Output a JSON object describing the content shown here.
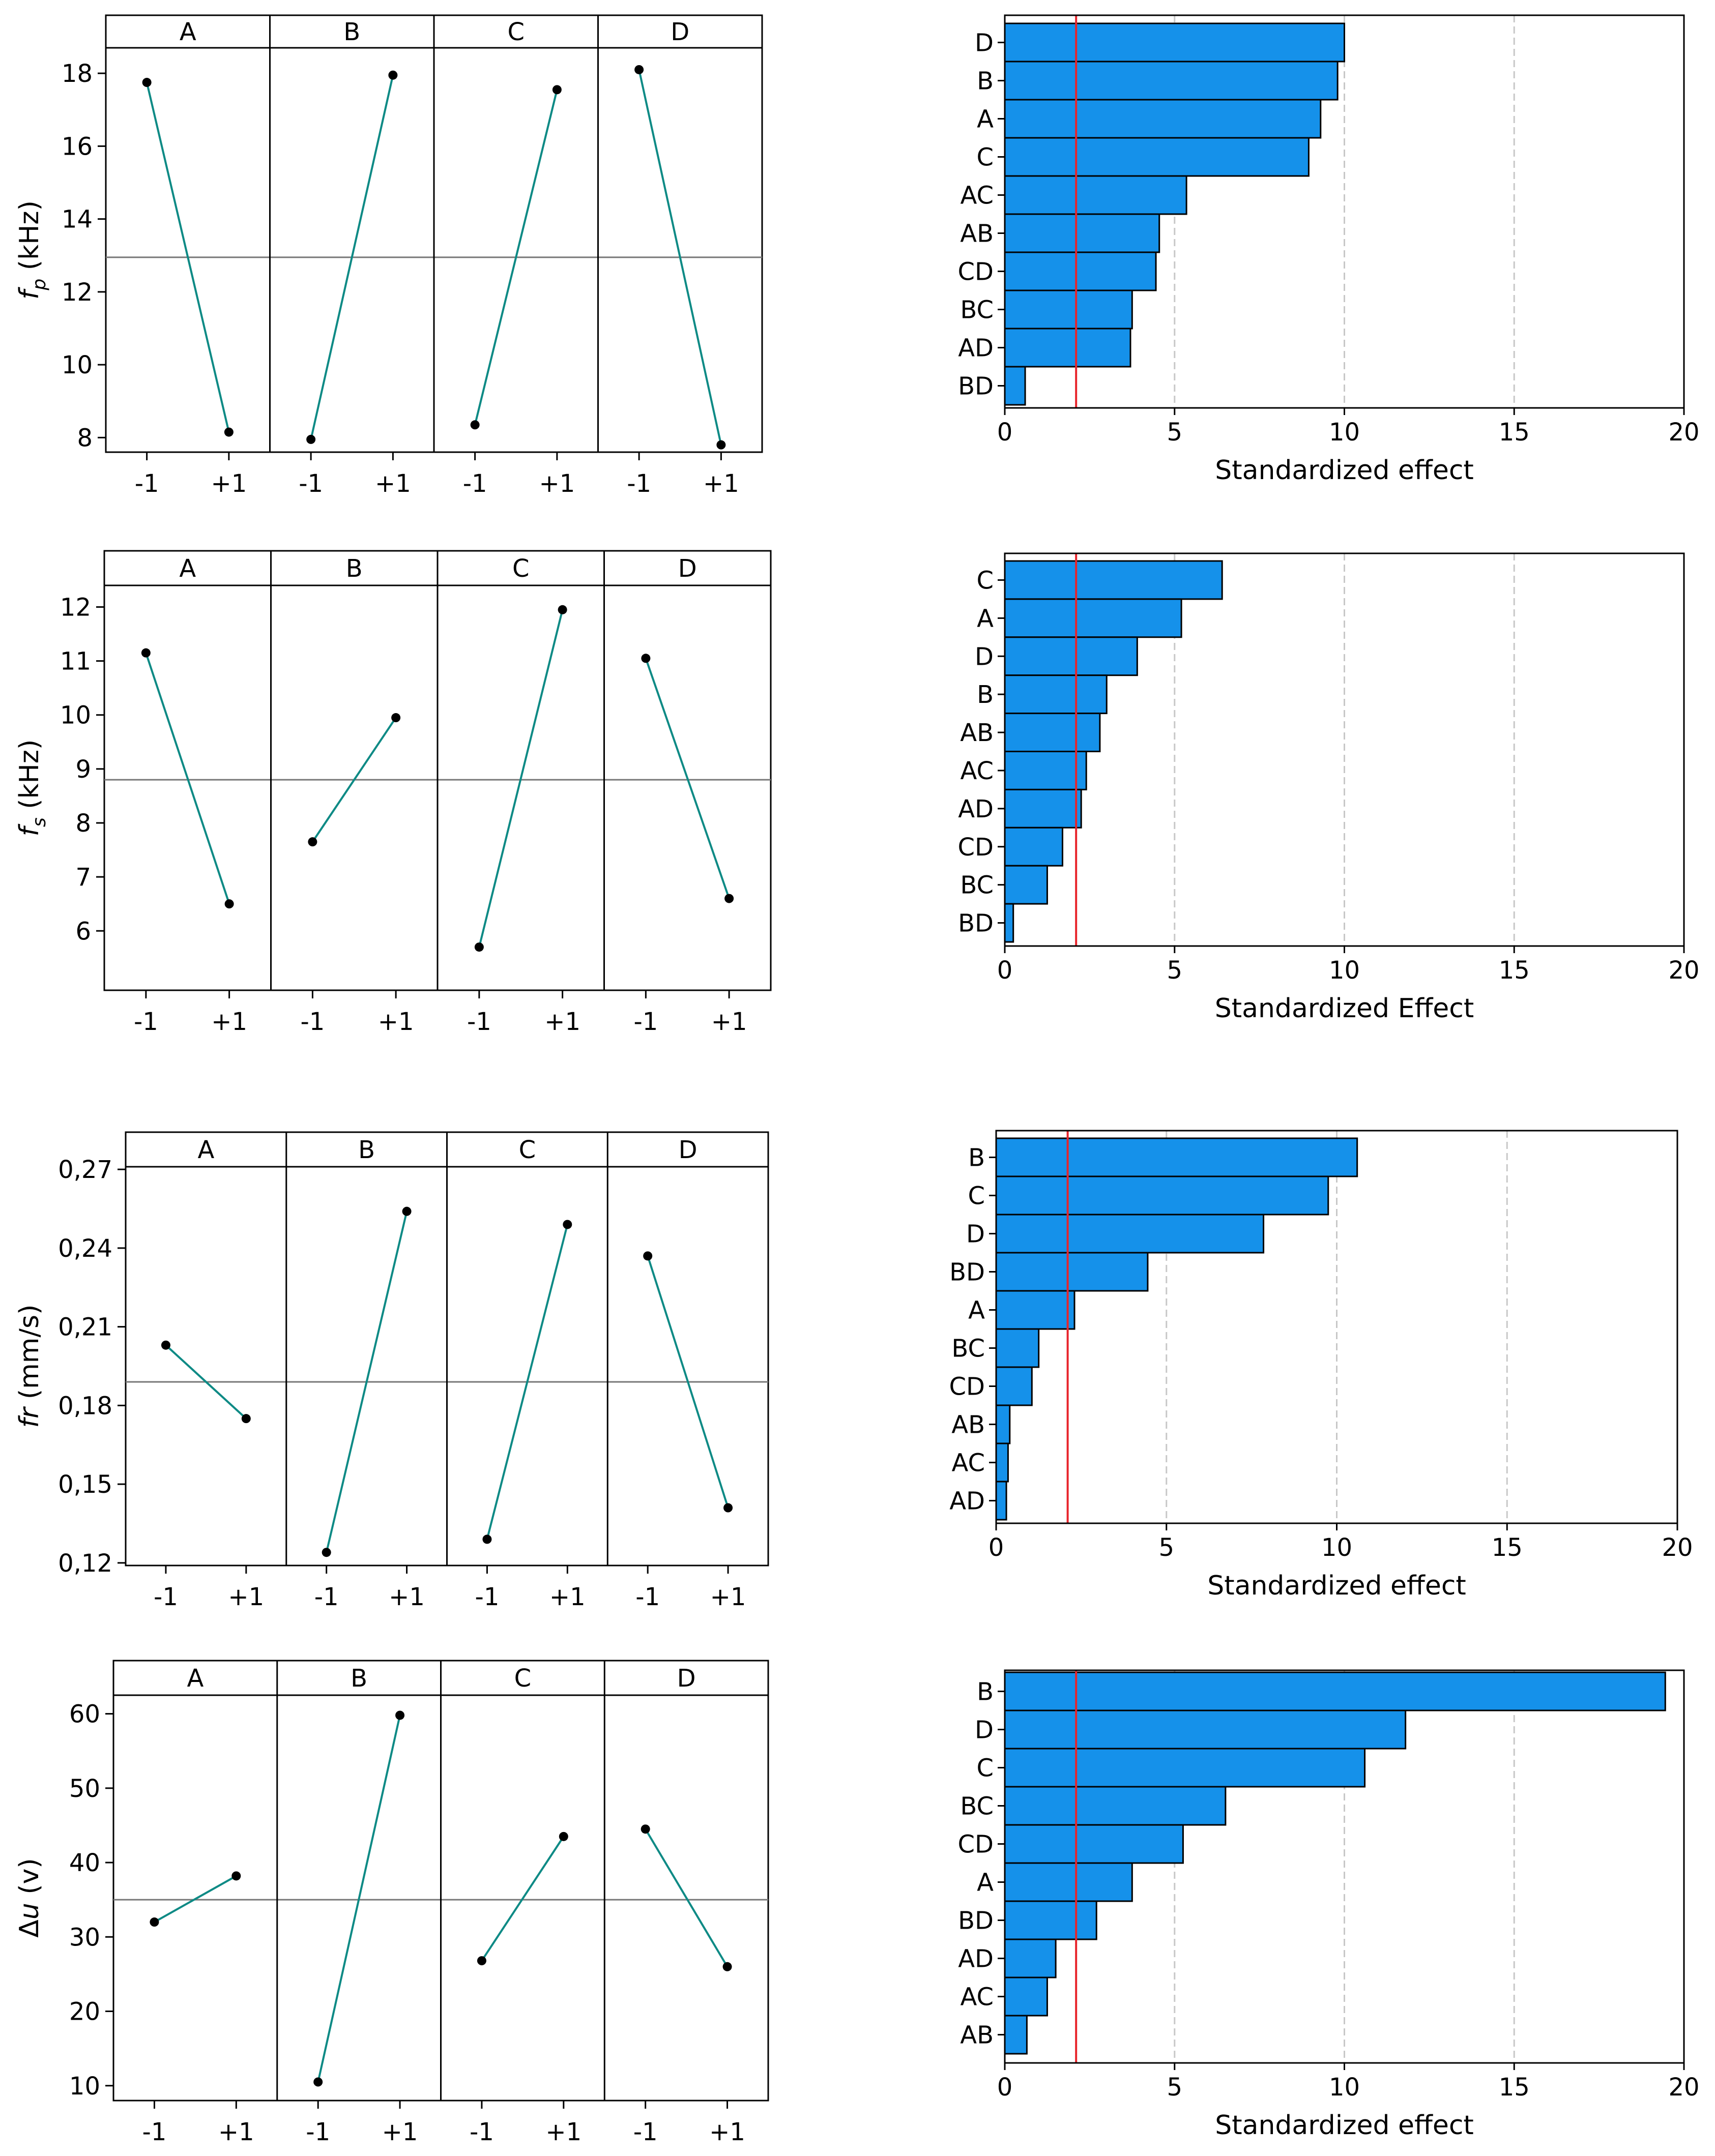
{
  "colors": {
    "line": "#0E8A85",
    "point": "#000000",
    "bar_fill": "#1591EA",
    "bar_edge": "#000000",
    "ref_line": "#E8242B",
    "grid": "#C8C8C8",
    "mean_line": "#777777",
    "axis": "#000000"
  },
  "chart_data": [
    {
      "type": "line",
      "subtype": "main-effects",
      "title": "",
      "ylabel": "f_p (kHz)",
      "ylabel_var": "f",
      "ylabel_sub": "p",
      "ylabel_unit": "(kHz)",
      "ylim": [
        7.6,
        18.7
      ],
      "yticks": [
        "8",
        "10",
        "12",
        "14",
        "16",
        "18"
      ],
      "ytick_values": [
        8,
        10,
        12,
        14,
        16,
        18
      ],
      "x_levels": [
        "-1",
        "+1"
      ],
      "mean": 12.95,
      "panels": [
        {
          "factor": "A",
          "values": [
            17.75,
            8.15
          ]
        },
        {
          "factor": "B",
          "values": [
            7.95,
            17.95
          ]
        },
        {
          "factor": "C",
          "values": [
            8.35,
            17.55
          ]
        },
        {
          "factor": "D",
          "values": [
            18.1,
            7.8
          ]
        }
      ]
    },
    {
      "type": "bar",
      "subtype": "pareto",
      "orientation": "horizontal",
      "xlabel": "Standardized effect",
      "xlim": [
        0,
        20
      ],
      "xticks": [
        "0",
        "5",
        "10",
        "15",
        "20"
      ],
      "xtick_values": [
        0,
        5,
        10,
        15,
        20
      ],
      "reference_line": 2.1,
      "categories": [
        "D",
        "B",
        "A",
        "C",
        "AC",
        "AB",
        "CD",
        "BC",
        "AD",
        "BD"
      ],
      "values": [
        10.0,
        9.8,
        9.3,
        8.95,
        5.35,
        4.55,
        4.45,
        3.75,
        3.7,
        0.6
      ]
    },
    {
      "type": "line",
      "subtype": "main-effects",
      "title": "",
      "ylabel": "f_s (kHz)",
      "ylabel_var": "f",
      "ylabel_sub": "s",
      "ylabel_unit": "(kHz)",
      "ylim": [
        4.9,
        12.4
      ],
      "yticks": [
        "6",
        "7",
        "8",
        "9",
        "10",
        "11",
        "12"
      ],
      "ytick_values": [
        6,
        7,
        8,
        9,
        10,
        11,
        12
      ],
      "x_levels": [
        "-1",
        "+1"
      ],
      "mean": 8.8,
      "panels": [
        {
          "factor": "A",
          "values": [
            11.15,
            6.5
          ]
        },
        {
          "factor": "B",
          "values": [
            7.65,
            9.95
          ]
        },
        {
          "factor": "C",
          "values": [
            5.7,
            11.95
          ]
        },
        {
          "factor": "D",
          "values": [
            11.05,
            6.6
          ]
        }
      ]
    },
    {
      "type": "bar",
      "subtype": "pareto",
      "orientation": "horizontal",
      "xlabel": "Standardized Effect",
      "xlim": [
        0,
        20
      ],
      "xticks": [
        "0",
        "5",
        "10",
        "15",
        "20"
      ],
      "xtick_values": [
        0,
        5,
        10,
        15,
        20
      ],
      "reference_line": 2.1,
      "categories": [
        "C",
        "A",
        "D",
        "B",
        "AB",
        "AC",
        "AD",
        "CD",
        "BC",
        "BD"
      ],
      "values": [
        6.4,
        5.2,
        3.9,
        3.0,
        2.8,
        2.4,
        2.25,
        1.7,
        1.25,
        0.25
      ]
    },
    {
      "type": "line",
      "subtype": "main-effects",
      "title": "",
      "ylabel": "fr (mm/s)",
      "ylabel_var": "fr",
      "ylabel_sub": "",
      "ylabel_unit": "(mm/s)",
      "ylim": [
        0.119,
        0.271
      ],
      "yticks": [
        "0,12",
        "0,15",
        "0,18",
        "0,21",
        "0,24",
        "0,27"
      ],
      "ytick_values": [
        0.12,
        0.15,
        0.18,
        0.21,
        0.24,
        0.27
      ],
      "x_levels": [
        "-1",
        "+1"
      ],
      "mean": 0.189,
      "panels": [
        {
          "factor": "A",
          "values": [
            0.203,
            0.175
          ]
        },
        {
          "factor": "B",
          "values": [
            0.124,
            0.254
          ]
        },
        {
          "factor": "C",
          "values": [
            0.129,
            0.249
          ]
        },
        {
          "factor": "D",
          "values": [
            0.237,
            0.141
          ]
        }
      ]
    },
    {
      "type": "bar",
      "subtype": "pareto",
      "orientation": "horizontal",
      "xlabel": "Standardized effect",
      "xlim": [
        0,
        20
      ],
      "xticks": [
        "0",
        "5",
        "10",
        "15",
        "20"
      ],
      "xtick_values": [
        0,
        5,
        10,
        15,
        20
      ],
      "reference_line": 2.1,
      "categories": [
        "B",
        "C",
        "D",
        "BD",
        "A",
        "BC",
        "CD",
        "AB",
        "AC",
        "AD"
      ],
      "values": [
        10.6,
        9.75,
        7.85,
        4.45,
        2.3,
        1.25,
        1.05,
        0.4,
        0.35,
        0.3
      ]
    },
    {
      "type": "line",
      "subtype": "main-effects",
      "title": "",
      "ylabel": "Δu (v)",
      "ylabel_var": "u",
      "ylabel_sub": "",
      "ylabel_unit": "(v)",
      "ylabel_prefix": "Δ",
      "ylim": [
        8.0,
        62.5
      ],
      "yticks": [
        "10",
        "20",
        "30",
        "40",
        "50",
        "60"
      ],
      "ytick_values": [
        10,
        20,
        30,
        40,
        50,
        60
      ],
      "x_levels": [
        "-1",
        "+1"
      ],
      "mean": 35.0,
      "panels": [
        {
          "factor": "A",
          "values": [
            32.0,
            38.2
          ]
        },
        {
          "factor": "B",
          "values": [
            10.5,
            59.8
          ]
        },
        {
          "factor": "C",
          "values": [
            26.8,
            43.5
          ]
        },
        {
          "factor": "D",
          "values": [
            44.5,
            26.0
          ]
        }
      ]
    },
    {
      "type": "bar",
      "subtype": "pareto",
      "orientation": "horizontal",
      "xlabel": "Standardized effect",
      "xlim": [
        0,
        20
      ],
      "xticks": [
        "0",
        "5",
        "10",
        "15",
        "20"
      ],
      "xtick_values": [
        0,
        5,
        10,
        15,
        20
      ],
      "reference_line": 2.1,
      "categories": [
        "B",
        "D",
        "C",
        "BC",
        "CD",
        "A",
        "BD",
        "AD",
        "AC",
        "AB"
      ],
      "values": [
        19.45,
        11.8,
        10.6,
        6.5,
        5.25,
        3.75,
        2.7,
        1.5,
        1.25,
        0.65
      ]
    }
  ]
}
